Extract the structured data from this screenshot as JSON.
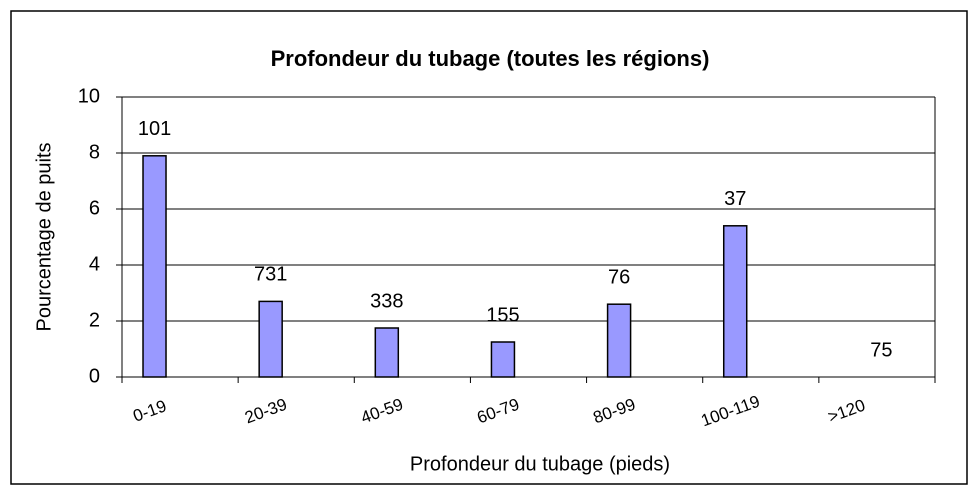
{
  "chart_data": {
    "type": "bar",
    "title": "Profondeur du tubage  (toutes les régions)",
    "x_label": "Profondeur du tubage (pieds)",
    "y_label": "Pourcentage de puits",
    "categories": [
      "0-19",
      "20-39",
      "40-59",
      "60-79",
      "80-99",
      "100-119",
      ">120"
    ],
    "values": [
      7.9,
      2.7,
      1.75,
      1.25,
      2.6,
      5.4,
      0
    ],
    "bar_labels": [
      101,
      731,
      338,
      155,
      76,
      37,
      75
    ],
    "color": "#9999ff",
    "ylim": [
      0,
      10
    ],
    "yticks": [
      0,
      2,
      4,
      6,
      8,
      10
    ],
    "grid": true
  }
}
